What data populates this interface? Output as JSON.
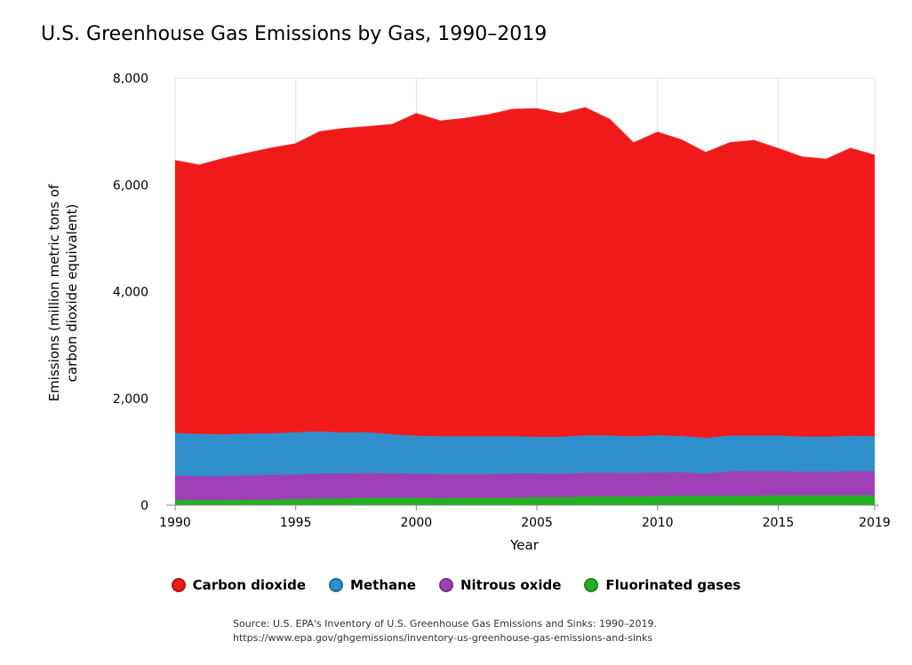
{
  "title": "U.S. Greenhouse Gas Emissions by Gas, 1990–2019",
  "source": {
    "line1": "Source: U.S. EPA's Inventory of U.S. Greenhouse Gas Emissions and Sinks: 1990–2019.",
    "line2": "https://www.epa.gov/ghgemissions/inventory-us-greenhouse-gas-emissions-and-sinks"
  },
  "chart_data": {
    "type": "area",
    "stacked": true,
    "title": "U.S. Greenhouse Gas Emissions by Gas, 1990–2019",
    "xlabel": "Year",
    "ylabel": "Emissions (million metric tons of carbon dioxide equivalent)",
    "ylabel_lines": [
      "Emissions (million metric tons of",
      "carbon dioxide equivalent)"
    ],
    "xlim": [
      1990,
      2019
    ],
    "ylim": [
      0,
      8000
    ],
    "x_ticks": [
      1990,
      1995,
      2000,
      2005,
      2010,
      2015,
      2019
    ],
    "y_ticks": [
      0,
      2000,
      4000,
      6000,
      8000
    ],
    "y_tick_labels": [
      "0",
      "2,000",
      "4,000",
      "6,000",
      "8,000"
    ],
    "grid": true,
    "legend_position": "bottom",
    "x": [
      1990,
      1991,
      1992,
      1993,
      1994,
      1995,
      1996,
      1997,
      1998,
      1999,
      2000,
      2001,
      2002,
      2003,
      2004,
      2005,
      2006,
      2007,
      2008,
      2009,
      2010,
      2011,
      2012,
      2013,
      2014,
      2015,
      2016,
      2017,
      2018,
      2019
    ],
    "series": [
      {
        "name": "Fluorinated gases",
        "color": "#22b022",
        "values": [
          100,
          95,
          97,
          100,
          105,
          115,
          125,
          130,
          140,
          140,
          140,
          130,
          140,
          135,
          140,
          150,
          150,
          160,
          165,
          160,
          170,
          175,
          175,
          175,
          180,
          185,
          185,
          185,
          185,
          185
        ]
      },
      {
        "name": "Nitrous oxide",
        "color": "#a040b8",
        "values": [
          455,
          450,
          445,
          460,
          460,
          460,
          465,
          460,
          465,
          455,
          445,
          450,
          440,
          445,
          450,
          440,
          435,
          445,
          440,
          440,
          440,
          440,
          415,
          460,
          460,
          455,
          440,
          440,
          450,
          450
        ]
      },
      {
        "name": "Methane",
        "color": "#2e8fcc",
        "values": [
          795,
          790,
          785,
          780,
          780,
          790,
          790,
          770,
          760,
          730,
          715,
          710,
          710,
          710,
          700,
          690,
          695,
          705,
          700,
          690,
          700,
          680,
          670,
          670,
          665,
          665,
          660,
          660,
          665,
          655
        ]
      },
      {
        "name": "Carbon dioxide",
        "color": "#f01a1a",
        "values": [
          5100,
          5030,
          5160,
          5250,
          5340,
          5400,
          5610,
          5690,
          5720,
          5800,
          6030,
          5900,
          5950,
          6020,
          6120,
          6140,
          6050,
          6130,
          5920,
          5490,
          5670,
          5540,
          5340,
          5480,
          5520,
          5370,
          5230,
          5190,
          5380,
          5260
        ]
      }
    ]
  },
  "legend": {
    "items": [
      {
        "label": "Carbon dioxide",
        "color": "#f01a1a"
      },
      {
        "label": "Methane",
        "color": "#2e8fcc"
      },
      {
        "label": "Nitrous oxide",
        "color": "#a040b8"
      },
      {
        "label": "Fluorinated gases",
        "color": "#22b022"
      }
    ]
  }
}
